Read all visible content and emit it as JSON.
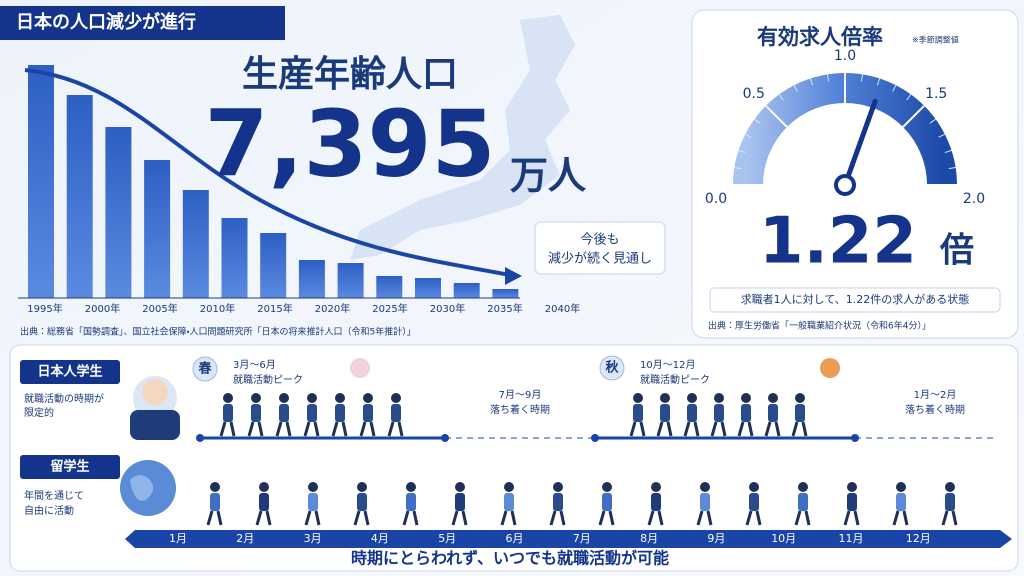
{
  "header": {
    "title": "日本の人口減少が進行"
  },
  "population": {
    "title": "生産年齢人口",
    "value": "7,395",
    "unit": "万人",
    "years": [
      "1995年",
      "2000年",
      "2005年",
      "2010年",
      "2015年",
      "2020年",
      "2025年",
      "2030年",
      "2035年",
      "2040年"
    ],
    "callout": [
      "今後も",
      "減少が続く見通し"
    ],
    "source": "出典：総務省「国勢調査」、国立社会保障・人口問題研究所「日本の将来推計人口（令和5年推計）」"
  },
  "gauge": {
    "title": "有効求人倍率",
    "note": "※季節調整値",
    "value": 1.22,
    "unit": "倍",
    "range": [
      0,
      2
    ],
    "ticks": [
      {
        "value": 0,
        "label": "0.0"
      },
      {
        "value": 0.5,
        "label": "0.5"
      },
      {
        "value": 1,
        "label": "1.0"
      },
      {
        "value": 1.5,
        "label": "1.5"
      },
      {
        "value": 2,
        "label": "2.0"
      }
    ],
    "description": "求職者1人に対して、1.22件の求人がある状態",
    "source": "出典：厚生労働省「一般職業紹介状況（令和6年4分）」"
  },
  "timeline": {
    "japanese": {
      "label": "日本人学生",
      "description": [
        "就職活動の時期が",
        "限定的"
      ],
      "periods": [
        {
          "season": "春",
          "months": "3月～6月",
          "text": "就職活動ピーク"
        },
        {
          "months": "7月～9月",
          "text": "落ち着く時期"
        },
        {
          "season": "秋",
          "months": "10月～12月",
          "text": "就職活動ピーク"
        },
        {
          "months": "1月～2月",
          "text": "落ち着く時期"
        }
      ]
    },
    "international": {
      "label": "留学生",
      "description": [
        "年間を通じて",
        "自由に活動"
      ]
    },
    "months": [
      "1月",
      "2月",
      "3月",
      "4月",
      "5月",
      "6月",
      "7月",
      "8月",
      "9月",
      "10月",
      "11月",
      "12月"
    ],
    "caption": "時期にとらわれず、いつでも就職活動が可能"
  }
}
